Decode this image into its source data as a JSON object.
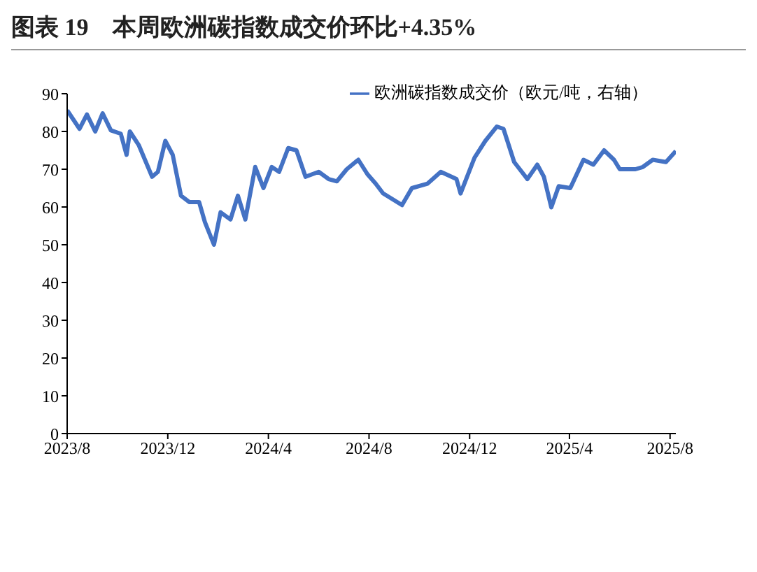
{
  "chart_data": {
    "type": "line",
    "title": "图表 19　本周欧洲碳指数成交价环比+4.35%",
    "x": [
      "2023-08-01",
      "2023-08-16",
      "2023-08-25",
      "2023-09-04",
      "2023-09-13",
      "2023-09-23",
      "2023-10-05",
      "2023-10-12",
      "2023-10-16",
      "2023-10-27",
      "2023-11-12",
      "2023-11-19",
      "2023-11-28",
      "2023-12-07",
      "2023-12-17",
      "2023-12-27",
      "2024-01-08",
      "2024-01-15",
      "2024-01-26",
      "2024-02-03",
      "2024-02-15",
      "2024-02-24",
      "2024-03-04",
      "2024-03-16",
      "2024-03-26",
      "2024-04-05",
      "2024-04-14",
      "2024-04-25",
      "2024-05-05",
      "2024-05-16",
      "2024-06-01",
      "2024-06-13",
      "2024-06-23",
      "2024-07-05",
      "2024-07-19",
      "2024-07-30",
      "2024-08-09",
      "2024-08-18",
      "2024-09-10",
      "2024-09-22",
      "2024-10-11",
      "2024-10-27",
      "2024-11-15",
      "2024-11-20",
      "2024-12-07",
      "2024-12-20",
      "2025-01-03",
      "2025-01-11",
      "2025-01-24",
      "2025-02-09",
      "2025-02-21",
      "2025-03-01",
      "2025-03-10",
      "2025-03-19",
      "2025-04-02",
      "2025-04-18",
      "2025-04-30",
      "2025-05-13",
      "2025-05-25",
      "2025-06-01",
      "2025-06-20",
      "2025-06-29",
      "2025-07-11",
      "2025-07-27",
      "2025-08-08"
    ],
    "series": [
      {
        "name": "欧洲碳指数成交价（欧元/吨，右轴）",
        "color": "#4472c4",
        "values": [
          85.6,
          80.7,
          84.5,
          80,
          84.8,
          80.3,
          79.4,
          73.8,
          80,
          76.3,
          68,
          69.3,
          77.5,
          73.8,
          63,
          61.3,
          61.3,
          56,
          50,
          58.6,
          56.7,
          63,
          56.7,
          70.6,
          65,
          70.6,
          69.3,
          75.6,
          75,
          68,
          69.3,
          67.4,
          66.8,
          70,
          72.5,
          68.7,
          66.2,
          63.6,
          60.5,
          65,
          66.2,
          69.3,
          67.4,
          63.6,
          73.1,
          77.5,
          81.3,
          80.7,
          71.9,
          67.4,
          71.2,
          68,
          59.9,
          65.5,
          65,
          72.5,
          71.2,
          75,
          72.5,
          70,
          70,
          70.6,
          72.5,
          71.9,
          74.8
        ]
      }
    ],
    "xlim": [
      "2023-08-01",
      "2025-08-08"
    ],
    "xticks": [
      {
        "value": "2023-08",
        "label": "2023/8"
      },
      {
        "value": "2023-12",
        "label": "2023/12"
      },
      {
        "value": "2024-04",
        "label": "2024/4"
      },
      {
        "value": "2024-08",
        "label": "2024/8"
      },
      {
        "value": "2024-12",
        "label": "2024/12"
      },
      {
        "value": "2025-04",
        "label": "2025/4"
      },
      {
        "value": "2025-08",
        "label": "2025/8"
      }
    ],
    "ylim": [
      0,
      90
    ],
    "yticks": [
      0,
      10,
      20,
      30,
      40,
      50,
      60,
      70,
      80,
      90
    ],
    "grid": false,
    "legend": "top right",
    "marker": "none",
    "line_style": "solid"
  }
}
